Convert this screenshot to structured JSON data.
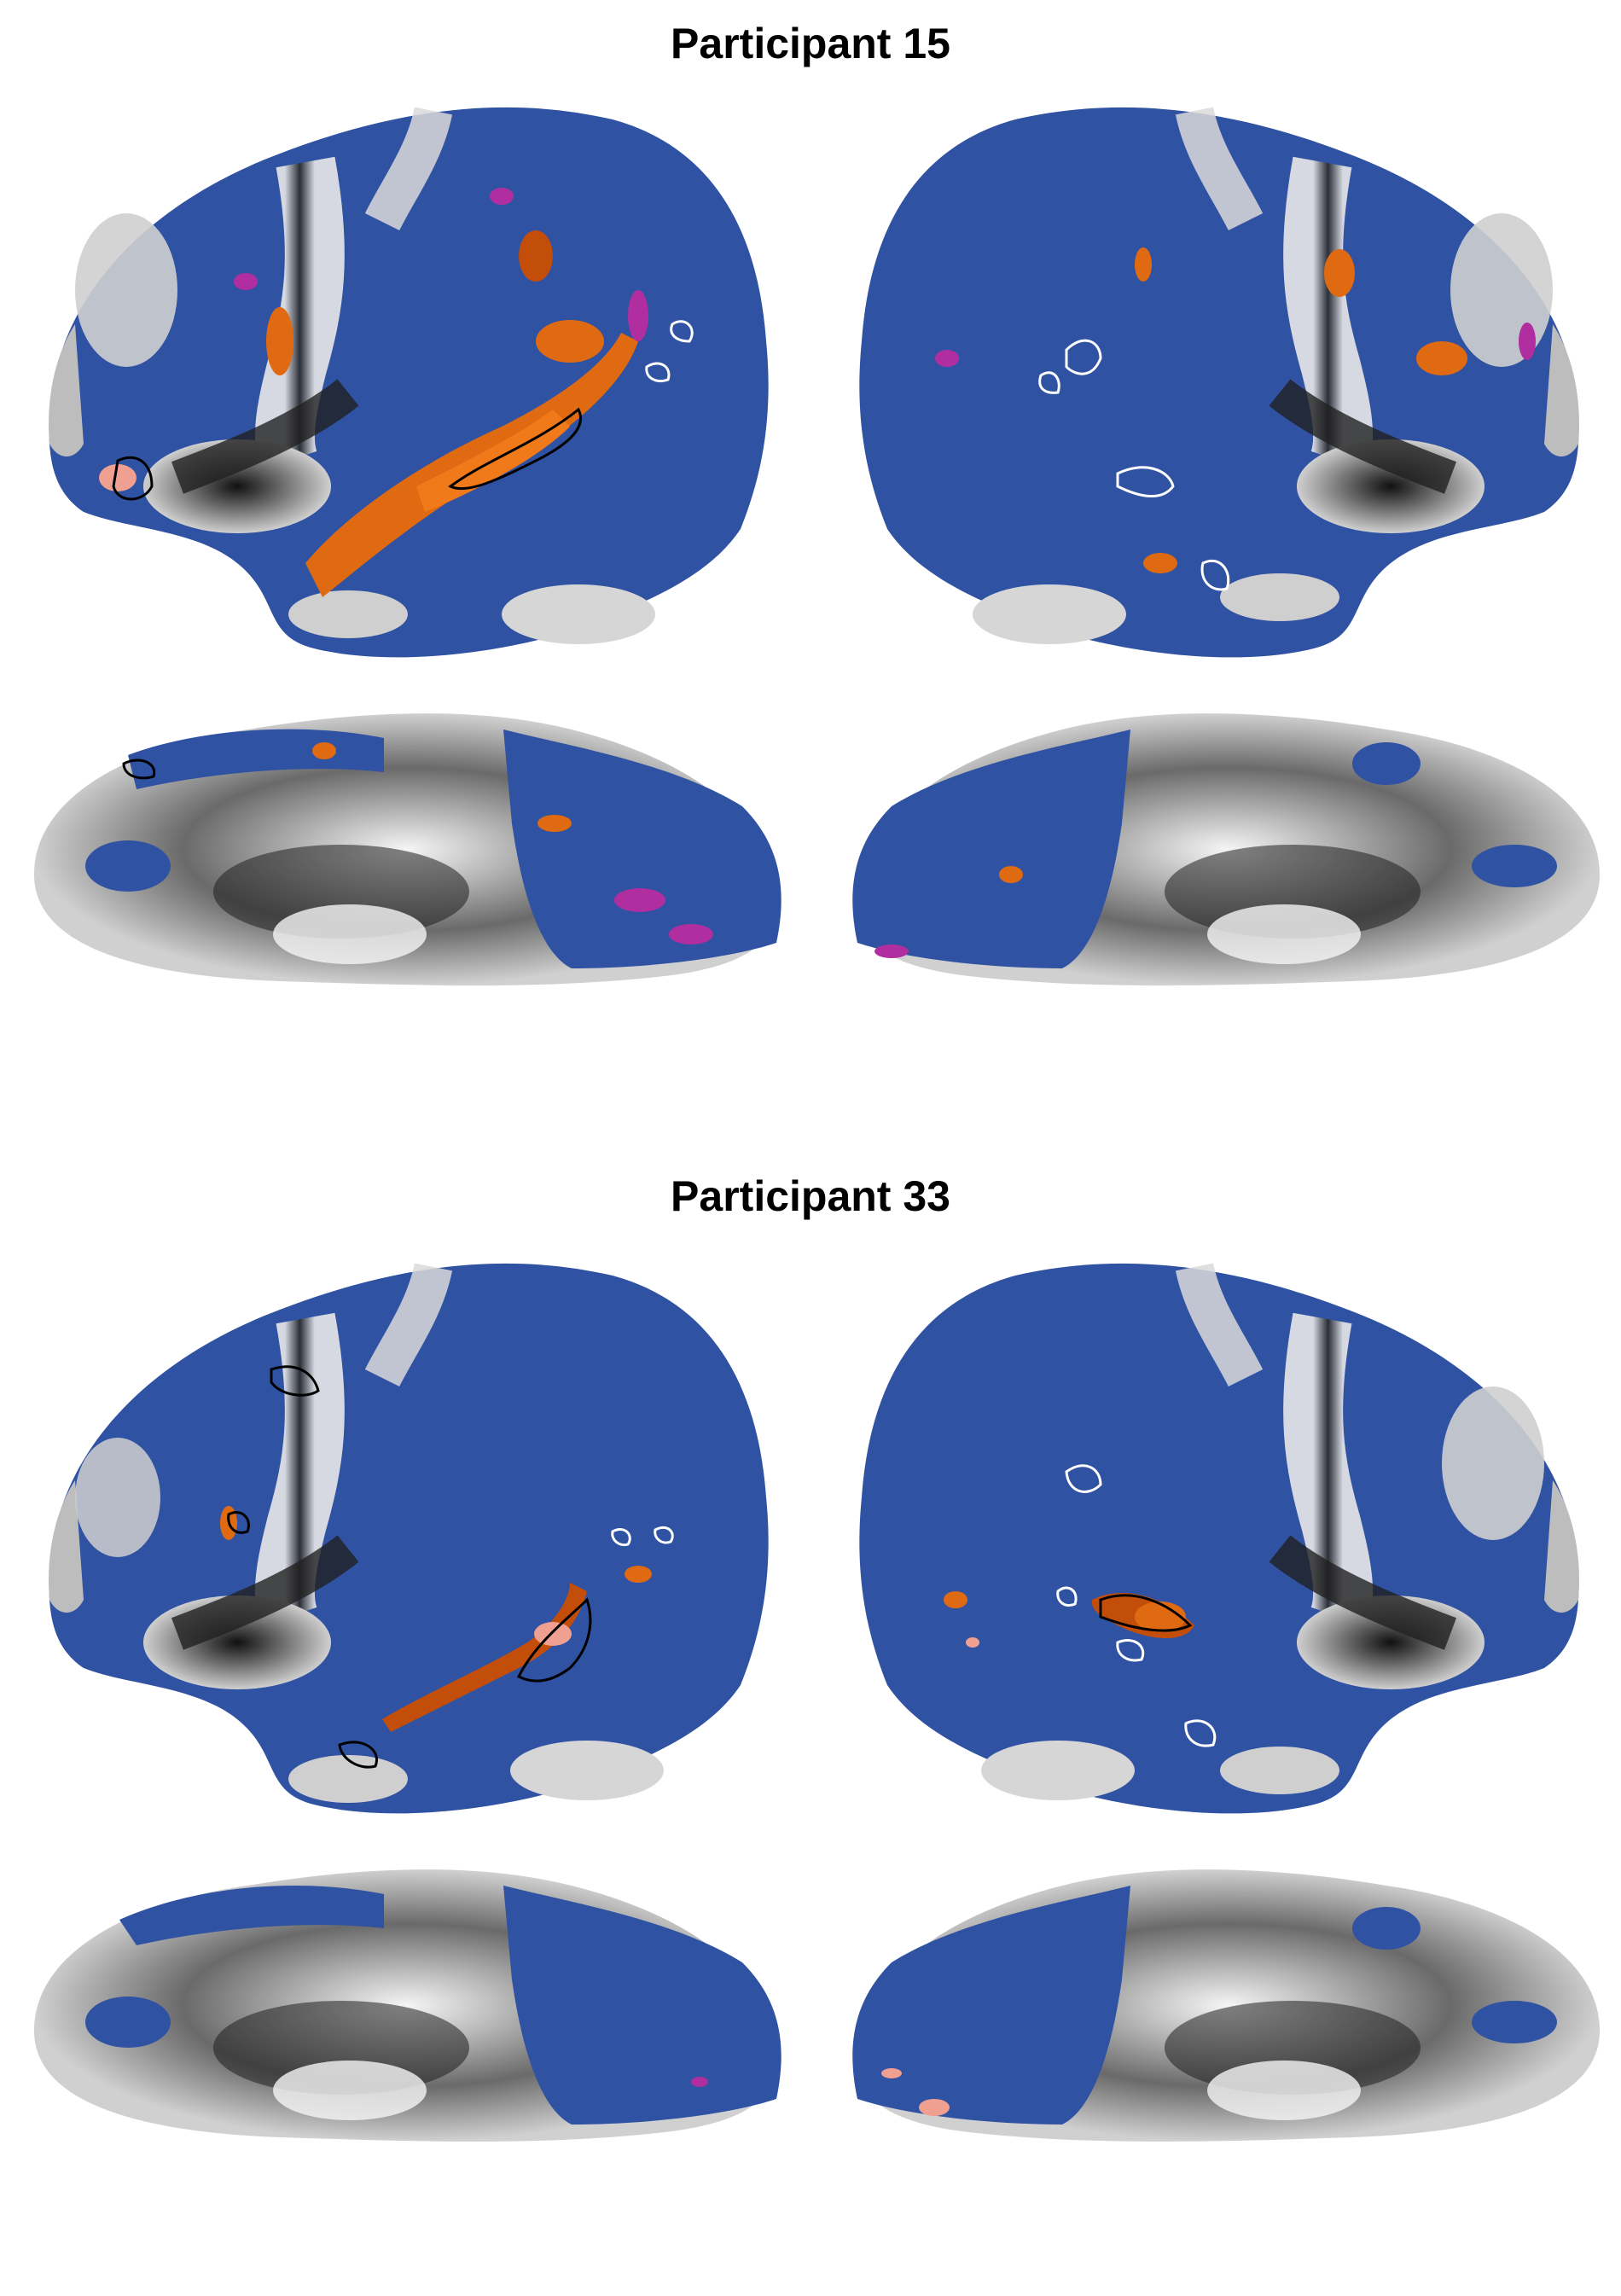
{
  "panels": [
    {
      "title": "Participant 15"
    },
    {
      "title": "Participant 33"
    }
  ],
  "colors": {
    "background": "#ffffff",
    "cortex_fill": "#2f52a3",
    "sulc_dark": "#1a1a1a",
    "sulc_light": "#f0f0f0",
    "gray_patch": "#8a8a8a",
    "orange": "#e06a12",
    "orange_dark": "#c24e0a",
    "salmon": "#f0a090",
    "magenta": "#b02ea0",
    "outline_black": "#000000",
    "outline_white": "#ffffff"
  },
  "views": [
    "left-lateral",
    "right-lateral",
    "left-medial",
    "right-medial"
  ]
}
